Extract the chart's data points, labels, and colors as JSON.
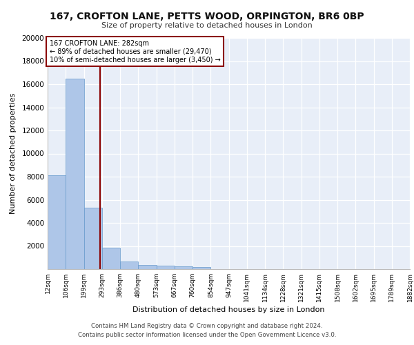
{
  "title": "167, CROFTON LANE, PETTS WOOD, ORPINGTON, BR6 0BP",
  "subtitle": "Size of property relative to detached houses in London",
  "xlabel": "Distribution of detached houses by size in London",
  "ylabel": "Number of detached properties",
  "footer_line1": "Contains HM Land Registry data © Crown copyright and database right 2024.",
  "footer_line2": "Contains public sector information licensed under the Open Government Licence v3.0.",
  "annotation_line1": "167 CROFTON LANE: 282sqm",
  "annotation_line2": "← 89% of detached houses are smaller (29,470)",
  "annotation_line3": "10% of semi-detached houses are larger (3,450) →",
  "property_size": 282,
  "bar_color": "#aec6e8",
  "bar_edge_color": "#6699cc",
  "vline_color": "#8b0000",
  "annotation_box_color": "#8b0000",
  "background_color": "#e8eef8",
  "bin_edges": [
    12,
    106,
    199,
    293,
    386,
    480,
    573,
    667,
    760,
    854,
    947,
    1041,
    1134,
    1228,
    1321,
    1415,
    1508,
    1602,
    1695,
    1789,
    1882
  ],
  "bin_labels": [
    "12sqm",
    "106sqm",
    "199sqm",
    "293sqm",
    "386sqm",
    "480sqm",
    "573sqm",
    "667sqm",
    "760sqm",
    "854sqm",
    "947sqm",
    "1041sqm",
    "1134sqm",
    "1228sqm",
    "1321sqm",
    "1415sqm",
    "1508sqm",
    "1602sqm",
    "1695sqm",
    "1789sqm",
    "1882sqm"
  ],
  "bar_heights": [
    8100,
    16500,
    5300,
    1850,
    680,
    350,
    280,
    230,
    200,
    0,
    0,
    0,
    0,
    0,
    0,
    0,
    0,
    0,
    0,
    0
  ],
  "ylim": [
    0,
    20000
  ],
  "yticks": [
    0,
    2000,
    4000,
    6000,
    8000,
    10000,
    12000,
    14000,
    16000,
    18000,
    20000
  ]
}
